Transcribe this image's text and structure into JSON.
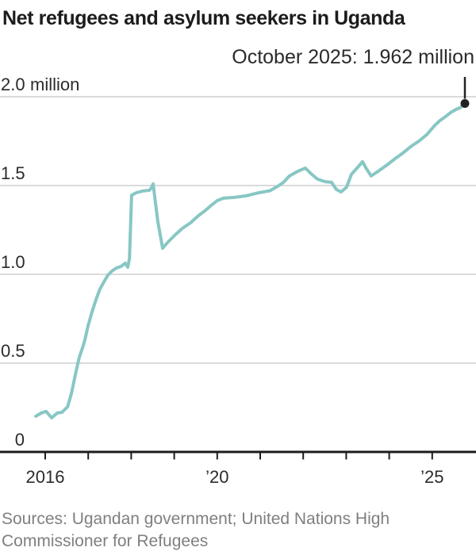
{
  "header": {
    "title": "Net refugees and asylum seekers in Uganda",
    "annotation": "October 2025: 1.962 million"
  },
  "footer": {
    "sources": "Sources: Ugandan government; United Nations High Commissioner for Refugees"
  },
  "colors": {
    "line": "#87c7c4",
    "endpoint": "#222222",
    "grid": "#dbdbdb",
    "axis": "#1c1c1c",
    "title_text": "#1c1c1c",
    "label_text": "#2b2b2b",
    "source_text": "#7f7f7d"
  },
  "chart_data": {
    "type": "line",
    "title": "Net refugees and asylum seekers in Uganda",
    "unit": "million",
    "xlabel": "",
    "ylabel": "",
    "xlim": [
      2014.95,
      2026.02
    ],
    "ylim": [
      0,
      2.0
    ],
    "grid": true,
    "legend": "none",
    "annotation": {
      "text": "October 2025: 1.962 million",
      "x": 2025.76,
      "y": 1.962
    },
    "y_ticks": [
      {
        "value": 2.0,
        "num": "2.0",
        "suffix": "million"
      },
      {
        "value": 1.5,
        "num": "1.5"
      },
      {
        "value": 1.0,
        "num": "1.0"
      },
      {
        "value": 0.5,
        "num": "0.5"
      },
      {
        "value": 0,
        "num": "0"
      }
    ],
    "x_ticks": [
      {
        "value": 2016,
        "label": "2016"
      },
      {
        "value": 2017
      },
      {
        "value": 2018
      },
      {
        "value": 2019
      },
      {
        "value": 2020,
        "label": "’20"
      },
      {
        "value": 2021
      },
      {
        "value": 2022
      },
      {
        "value": 2023
      },
      {
        "value": 2024
      },
      {
        "value": 2025,
        "label": "’25"
      }
    ],
    "series": [
      {
        "name": "Net refugees and asylum seekers (million)",
        "points": [
          [
            2015.78,
            0.201
          ],
          [
            2015.91,
            0.219
          ],
          [
            2016.02,
            0.228
          ],
          [
            2016.15,
            0.192
          ],
          [
            2016.28,
            0.219
          ],
          [
            2016.39,
            0.223
          ],
          [
            2016.52,
            0.254
          ],
          [
            2016.61,
            0.33
          ],
          [
            2016.7,
            0.433
          ],
          [
            2016.79,
            0.531
          ],
          [
            2016.87,
            0.589
          ],
          [
            2016.92,
            0.629
          ],
          [
            2017.0,
            0.714
          ],
          [
            2017.09,
            0.79
          ],
          [
            2017.18,
            0.857
          ],
          [
            2017.27,
            0.915
          ],
          [
            2017.37,
            0.96
          ],
          [
            2017.46,
            0.996
          ],
          [
            2017.55,
            1.018
          ],
          [
            2017.66,
            1.036
          ],
          [
            2017.77,
            1.045
          ],
          [
            2017.86,
            1.063
          ],
          [
            2017.92,
            1.04
          ],
          [
            2017.96,
            1.09
          ],
          [
            2018.01,
            1.446
          ],
          [
            2018.12,
            1.46
          ],
          [
            2018.27,
            1.469
          ],
          [
            2018.42,
            1.473
          ],
          [
            2018.47,
            1.487
          ],
          [
            2018.51,
            1.509
          ],
          [
            2018.62,
            1.295
          ],
          [
            2018.73,
            1.147
          ],
          [
            2018.86,
            1.183
          ],
          [
            2019.01,
            1.219
          ],
          [
            2019.19,
            1.259
          ],
          [
            2019.38,
            1.29
          ],
          [
            2019.56,
            1.33
          ],
          [
            2019.71,
            1.357
          ],
          [
            2019.86,
            1.388
          ],
          [
            2020.0,
            1.415
          ],
          [
            2020.15,
            1.429
          ],
          [
            2020.39,
            1.433
          ],
          [
            2020.67,
            1.442
          ],
          [
            2020.94,
            1.458
          ],
          [
            2021.22,
            1.47
          ],
          [
            2021.41,
            1.496
          ],
          [
            2021.54,
            1.518
          ],
          [
            2021.68,
            1.554
          ],
          [
            2021.87,
            1.58
          ],
          [
            2022.05,
            1.598
          ],
          [
            2022.18,
            1.567
          ],
          [
            2022.33,
            1.536
          ],
          [
            2022.51,
            1.522
          ],
          [
            2022.66,
            1.518
          ],
          [
            2022.77,
            1.478
          ],
          [
            2022.88,
            1.464
          ],
          [
            2023.01,
            1.491
          ],
          [
            2023.12,
            1.563
          ],
          [
            2023.25,
            1.598
          ],
          [
            2023.38,
            1.634
          ],
          [
            2023.47,
            1.594
          ],
          [
            2023.58,
            1.554
          ],
          [
            2023.77,
            1.585
          ],
          [
            2023.95,
            1.616
          ],
          [
            2024.14,
            1.652
          ],
          [
            2024.32,
            1.683
          ],
          [
            2024.5,
            1.719
          ],
          [
            2024.69,
            1.75
          ],
          [
            2024.87,
            1.786
          ],
          [
            2025.06,
            1.839
          ],
          [
            2025.18,
            1.866
          ],
          [
            2025.31,
            1.888
          ],
          [
            2025.43,
            1.911
          ],
          [
            2025.56,
            1.929
          ],
          [
            2025.65,
            1.938
          ],
          [
            2025.76,
            1.962
          ]
        ]
      }
    ]
  }
}
